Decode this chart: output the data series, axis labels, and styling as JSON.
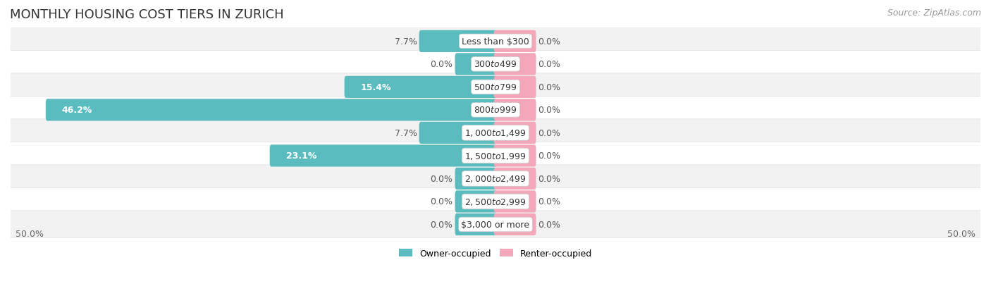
{
  "title": "MONTHLY HOUSING COST TIERS IN ZURICH",
  "source": "Source: ZipAtlas.com",
  "categories": [
    "Less than $300",
    "$300 to $499",
    "$500 to $799",
    "$800 to $999",
    "$1,000 to $1,499",
    "$1,500 to $1,999",
    "$2,000 to $2,499",
    "$2,500 to $2,999",
    "$3,000 or more"
  ],
  "owner_values": [
    7.7,
    0.0,
    15.4,
    46.2,
    7.7,
    23.1,
    0.0,
    0.0,
    0.0
  ],
  "renter_values": [
    0.0,
    0.0,
    0.0,
    0.0,
    0.0,
    0.0,
    0.0,
    0.0,
    0.0
  ],
  "owner_color": "#5bbcbf",
  "renter_color": "#f4a7b9",
  "row_bg_even": "#f2f2f2",
  "row_bg_odd": "#ffffff",
  "axis_max": 50.0,
  "title_fontsize": 13,
  "source_fontsize": 9,
  "label_fontsize": 9,
  "category_fontsize": 9,
  "legend_fontsize": 9,
  "axis_label_fontsize": 9,
  "min_owner_bar": 4.0,
  "min_renter_bar": 4.0
}
